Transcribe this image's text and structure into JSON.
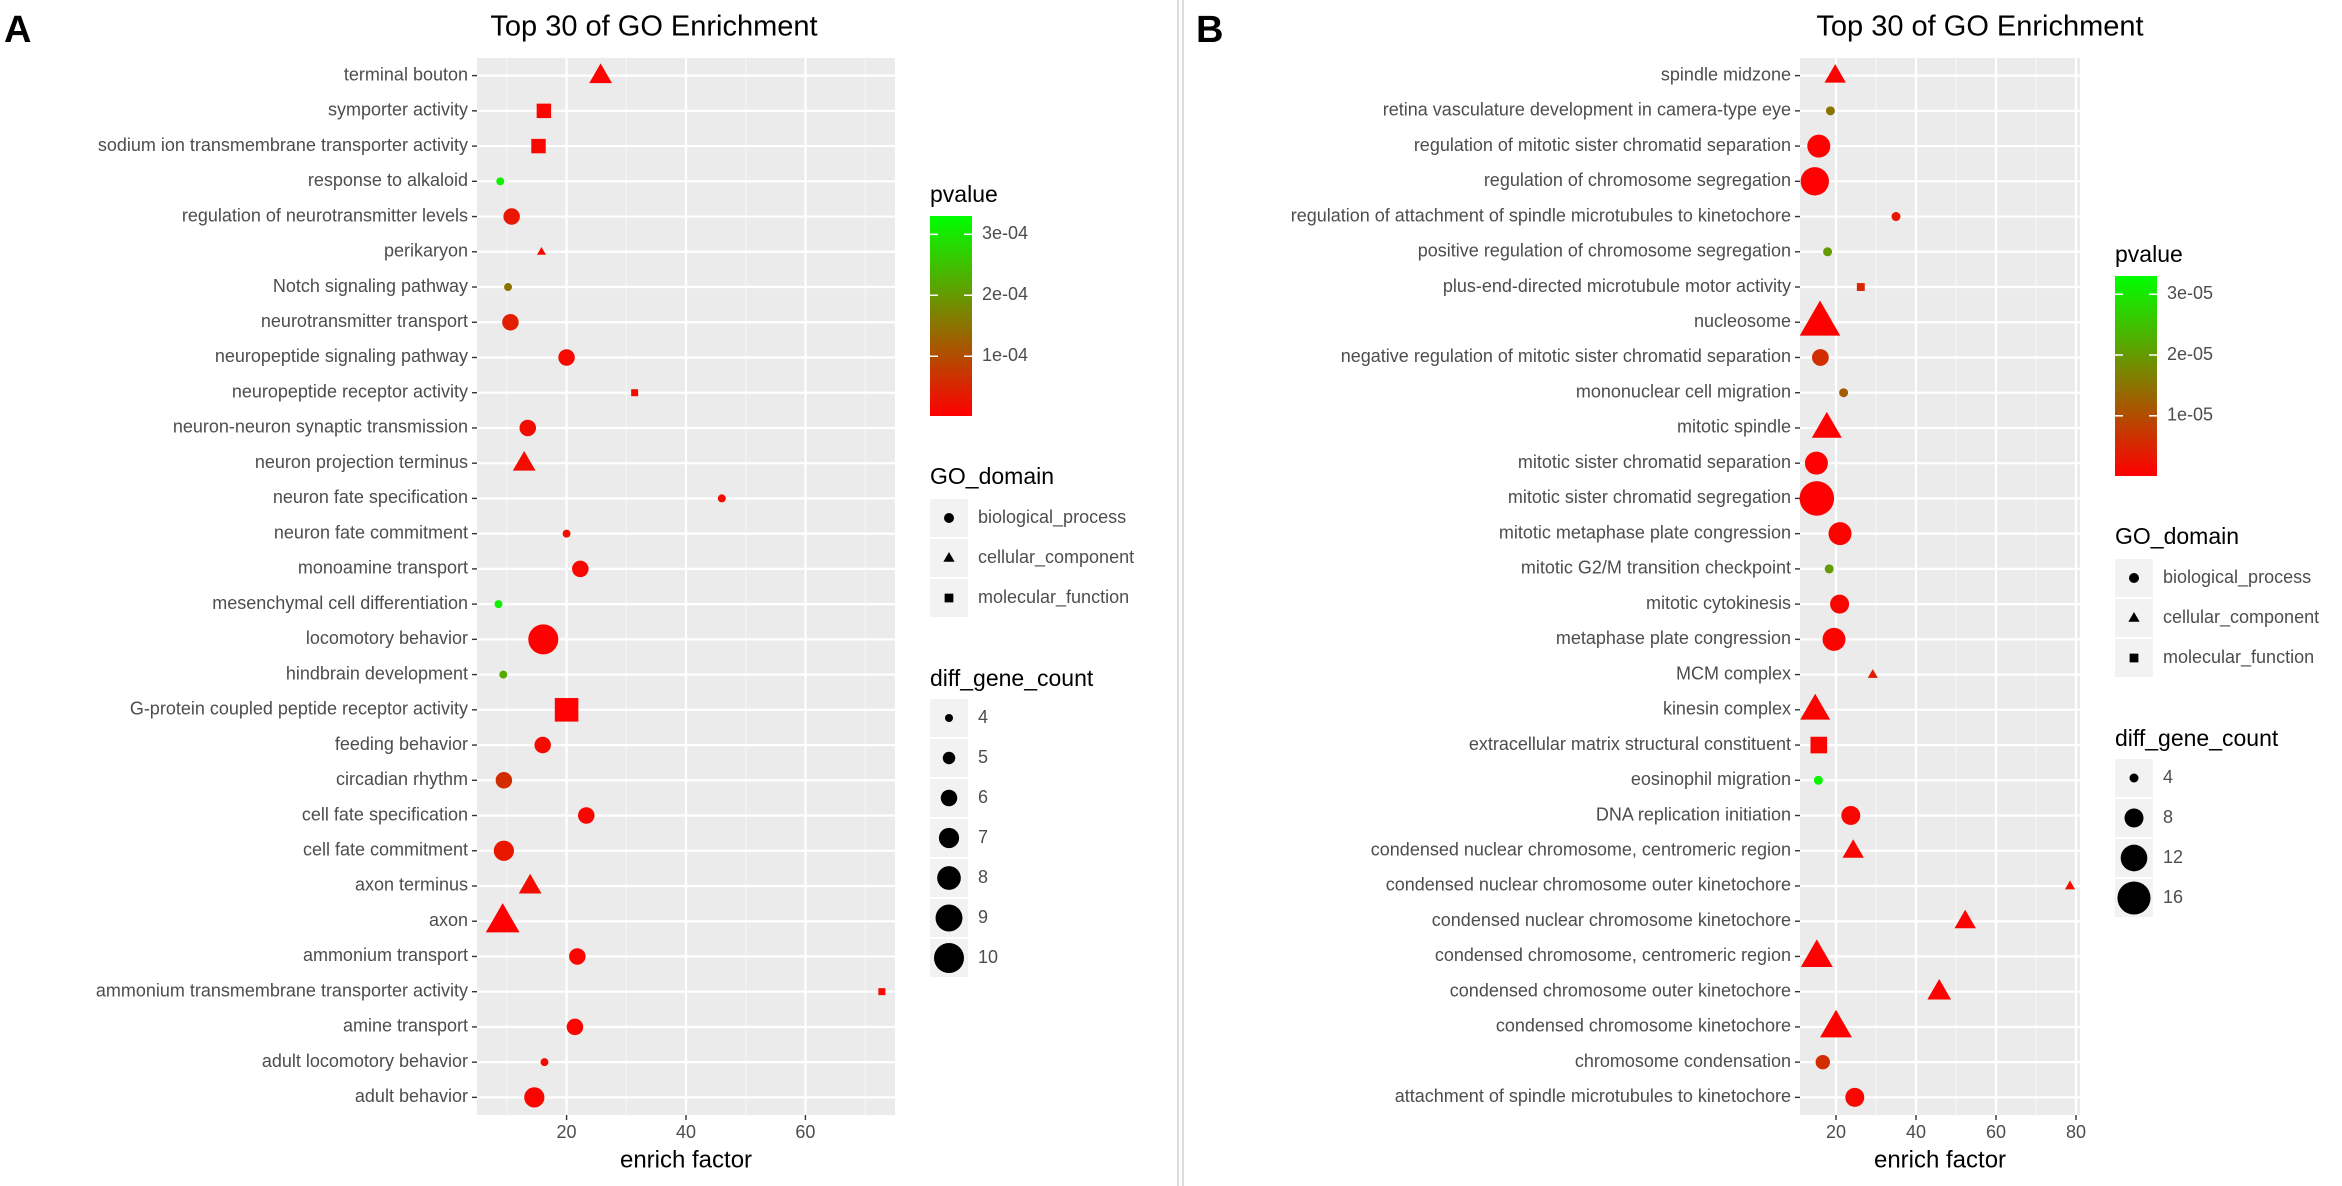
{
  "colors": {
    "panel_bg": "#EBEBEB",
    "grid_major": "#FFFFFF",
    "grid_minor": "#F5F5F5",
    "text": "#4D4D4D",
    "title": "#000000",
    "gradient_low": "#FF0000",
    "gradient_high": "#00FF00",
    "divider": "#CCCCCC"
  },
  "chart_data": [
    {
      "panel_label": "A",
      "type": "scatter",
      "title": "Top 30 of GO Enrichment",
      "xlabel": "enrich factor",
      "ylabel": "",
      "xlim": [
        5,
        75
      ],
      "xticks": [
        20,
        40,
        60
      ],
      "xtick_labels": [
        "20",
        "40",
        "60"
      ],
      "categories": [
        "terminal bouton",
        "symporter activity",
        "sodium ion transmembrane transporter activity",
        "response to alkaloid",
        "regulation of neurotransmitter levels",
        "perikaryon",
        "Notch signaling pathway",
        "neurotransmitter transport",
        "neuropeptide signaling pathway",
        "neuropeptide receptor activity",
        "neuron-neuron synaptic transmission",
        "neuron projection terminus",
        "neuron fate specification",
        "neuron fate commitment",
        "monoamine transport",
        "mesenchymal cell differentiation",
        "locomotory behavior",
        "hindbrain development",
        "G-protein coupled peptide receptor activity",
        "feeding behavior",
        "circadian rhythm",
        "cell fate specification",
        "cell fate commitment",
        "axon terminus",
        "axon",
        "ammonium transport",
        "ammonium transmembrane transporter activity",
        "amine transport",
        "adult locomotory behavior",
        "adult behavior"
      ],
      "points": [
        {
          "term": "terminal bouton",
          "x": 25.7,
          "pvalue": 5e-06,
          "domain": "cellular_component",
          "count": 7
        },
        {
          "term": "symporter activity",
          "x": 16.2,
          "pvalue": 1e-05,
          "domain": "molecular_function",
          "count": 6
        },
        {
          "term": "sodium ion transmembrane transporter activity",
          "x": 15.3,
          "pvalue": 1.2e-05,
          "domain": "molecular_function",
          "count": 6
        },
        {
          "term": "response to alkaloid",
          "x": 8.9,
          "pvalue": 0.00031,
          "domain": "biological_process",
          "count": 4
        },
        {
          "term": "regulation of neurotransmitter levels",
          "x": 10.8,
          "pvalue": 3e-05,
          "domain": "biological_process",
          "count": 6
        },
        {
          "term": "perikaryon",
          "x": 15.8,
          "pvalue": 1.5e-05,
          "domain": "cellular_component",
          "count": 4
        },
        {
          "term": "Notch signaling pathway",
          "x": 10.2,
          "pvalue": 0.00015,
          "domain": "biological_process",
          "count": 4
        },
        {
          "term": "neurotransmitter transport",
          "x": 10.6,
          "pvalue": 4e-05,
          "domain": "biological_process",
          "count": 6
        },
        {
          "term": "neuropeptide signaling pathway",
          "x": 20.0,
          "pvalue": 1.2e-05,
          "domain": "biological_process",
          "count": 6
        },
        {
          "term": "neuropeptide receptor activity",
          "x": 31.4,
          "pvalue": 1.5e-05,
          "domain": "molecular_function",
          "count": 4
        },
        {
          "term": "neuron-neuron synaptic transmission",
          "x": 13.5,
          "pvalue": 2e-05,
          "domain": "biological_process",
          "count": 6
        },
        {
          "term": "neuron projection terminus",
          "x": 12.9,
          "pvalue": 2e-05,
          "domain": "cellular_component",
          "count": 7
        },
        {
          "term": "neuron fate specification",
          "x": 46.0,
          "pvalue": 1.5e-05,
          "domain": "biological_process",
          "count": 4
        },
        {
          "term": "neuron fate commitment",
          "x": 20.0,
          "pvalue": 2e-05,
          "domain": "biological_process",
          "count": 4
        },
        {
          "term": "monoamine transport",
          "x": 22.3,
          "pvalue": 1e-05,
          "domain": "biological_process",
          "count": 6
        },
        {
          "term": "mesenchymal cell differentiation",
          "x": 8.6,
          "pvalue": 0.00031,
          "domain": "biological_process",
          "count": 4
        },
        {
          "term": "locomotory behavior",
          "x": 16.1,
          "pvalue": 2e-06,
          "domain": "biological_process",
          "count": 10
        },
        {
          "term": "hindbrain development",
          "x": 9.4,
          "pvalue": 0.00022,
          "domain": "biological_process",
          "count": 4
        },
        {
          "term": "G-protein coupled peptide receptor activity",
          "x": 20.0,
          "pvalue": 4e-06,
          "domain": "molecular_function",
          "count": 9
        },
        {
          "term": "feeding behavior",
          "x": 16.0,
          "pvalue": 1.5e-05,
          "domain": "biological_process",
          "count": 6
        },
        {
          "term": "circadian rhythm",
          "x": 9.5,
          "pvalue": 6e-05,
          "domain": "biological_process",
          "count": 6
        },
        {
          "term": "cell fate specification",
          "x": 23.3,
          "pvalue": 1e-05,
          "domain": "biological_process",
          "count": 6
        },
        {
          "term": "cell fate commitment",
          "x": 9.5,
          "pvalue": 3e-05,
          "domain": "biological_process",
          "count": 7
        },
        {
          "term": "axon terminus",
          "x": 13.9,
          "pvalue": 2e-05,
          "domain": "cellular_component",
          "count": 7
        },
        {
          "term": "axon",
          "x": 9.3,
          "pvalue": 2e-06,
          "domain": "cellular_component",
          "count": 10
        },
        {
          "term": "ammonium transport",
          "x": 21.8,
          "pvalue": 1e-05,
          "domain": "biological_process",
          "count": 6
        },
        {
          "term": "ammonium transmembrane transporter activity",
          "x": 72.8,
          "pvalue": 1.5e-05,
          "domain": "molecular_function",
          "count": 4
        },
        {
          "term": "amine transport",
          "x": 21.4,
          "pvalue": 1e-05,
          "domain": "biological_process",
          "count": 6
        },
        {
          "term": "adult locomotory behavior",
          "x": 16.3,
          "pvalue": 1.5e-05,
          "domain": "biological_process",
          "count": 4
        },
        {
          "term": "adult behavior",
          "x": 14.6,
          "pvalue": 1e-05,
          "domain": "biological_process",
          "count": 7
        }
      ],
      "legend": {
        "pvalue_title": "pvalue",
        "pvalue_range": [
          2e-06,
          0.00033
        ],
        "pvalue_ticks": [
          0.0001,
          0.0002,
          0.0003
        ],
        "pvalue_tick_labels": [
          "1e-04",
          "2e-04",
          "3e-04"
        ],
        "domain_title": "GO_domain",
        "domains": [
          "biological_process",
          "cellular_component",
          "molecular_function"
        ],
        "count_title": "diff_gene_count",
        "count_range": [
          4,
          10
        ],
        "count_values": [
          4,
          5,
          6,
          7,
          8,
          9,
          10
        ],
        "count_labels": [
          "4",
          "5",
          "6",
          "7",
          "8",
          "9",
          "10"
        ]
      }
    },
    {
      "panel_label": "B",
      "type": "scatter",
      "title": "Top 30 of GO Enrichment",
      "xlabel": "enrich factor",
      "ylabel": "",
      "xlim": [
        11,
        81
      ],
      "xticks": [
        20,
        40,
        60,
        80
      ],
      "xtick_labels": [
        "20",
        "40",
        "60",
        "80"
      ],
      "categories": [
        "spindle midzone",
        "retina vasculature development in camera-type eye",
        "regulation of mitotic sister chromatid separation",
        "regulation of chromosome segregation",
        "regulation of attachment of spindle microtubules to kinetochore",
        "positive regulation of chromosome segregation",
        "plus-end-directed microtubule motor activity",
        "nucleosome",
        "negative regulation of mitotic sister chromatid separation",
        "mononuclear cell migration",
        "mitotic spindle",
        "mitotic sister chromatid separation",
        "mitotic sister chromatid segregation",
        "mitotic metaphase plate congression",
        "mitotic G2/M transition checkpoint",
        "mitotic cytokinesis",
        "metaphase plate congression",
        "MCM complex",
        "kinesin complex",
        "extracellular matrix structural constituent",
        "eosinophil migration",
        "DNA replication initiation",
        "condensed nuclear chromosome, centromeric region",
        "condensed nuclear chromosome outer kinetochore",
        "condensed nuclear chromosome kinetochore",
        "condensed chromosome, centromeric region",
        "condensed chromosome outer kinetochore",
        "condensed chromosome kinetochore",
        "chromosome condensation",
        "attachment of spindle microtubules to kinetochore"
      ],
      "points": [
        {
          "term": "spindle midzone",
          "x": 19.8,
          "pvalue": 3e-07,
          "domain": "cellular_component",
          "count": 8
        },
        {
          "term": "retina vasculature development in camera-type eye",
          "x": 18.6,
          "pvalue": 1.5e-05,
          "domain": "biological_process",
          "count": 4
        },
        {
          "term": "regulation of mitotic sister chromatid separation",
          "x": 15.7,
          "pvalue": 3e-07,
          "domain": "biological_process",
          "count": 10
        },
        {
          "term": "regulation of chromosome segregation",
          "x": 14.7,
          "pvalue": 2e-07,
          "domain": "biological_process",
          "count": 13
        },
        {
          "term": "regulation of attachment of spindle microtubules to kinetochore",
          "x": 35.0,
          "pvalue": 3e-06,
          "domain": "biological_process",
          "count": 4
        },
        {
          "term": "positive regulation of chromosome segregation",
          "x": 17.9,
          "pvalue": 2e-05,
          "domain": "biological_process",
          "count": 4
        },
        {
          "term": "plus-end-directed microtubule motor activity",
          "x": 26.2,
          "pvalue": 5e-06,
          "domain": "molecular_function",
          "count": 4
        },
        {
          "term": "nucleosome",
          "x": 16.0,
          "pvalue": 1e-07,
          "domain": "cellular_component",
          "count": 18
        },
        {
          "term": "negative regulation of mitotic sister chromatid separation",
          "x": 16.1,
          "pvalue": 6e-06,
          "domain": "biological_process",
          "count": 7
        },
        {
          "term": "mononuclear cell migration",
          "x": 21.9,
          "pvalue": 1.2e-05,
          "domain": "biological_process",
          "count": 4
        },
        {
          "term": "mitotic spindle",
          "x": 17.7,
          "pvalue": 3e-07,
          "domain": "cellular_component",
          "count": 12
        },
        {
          "term": "mitotic sister chromatid separation",
          "x": 15.1,
          "pvalue": 3e-07,
          "domain": "biological_process",
          "count": 10
        },
        {
          "term": "mitotic sister chromatid segregation",
          "x": 15.2,
          "pvalue": 1e-07,
          "domain": "biological_process",
          "count": 17
        },
        {
          "term": "mitotic metaphase plate congression",
          "x": 21.0,
          "pvalue": 5e-07,
          "domain": "biological_process",
          "count": 10
        },
        {
          "term": "mitotic G2/M transition checkpoint",
          "x": 18.3,
          "pvalue": 2e-05,
          "domain": "biological_process",
          "count": 4
        },
        {
          "term": "mitotic cytokinesis",
          "x": 20.9,
          "pvalue": 1e-06,
          "domain": "biological_process",
          "count": 8
        },
        {
          "term": "metaphase plate congression",
          "x": 19.5,
          "pvalue": 6e-07,
          "domain": "biological_process",
          "count": 10
        },
        {
          "term": "MCM complex",
          "x": 29.2,
          "pvalue": 4e-06,
          "domain": "cellular_component",
          "count": 4
        },
        {
          "term": "kinesin complex",
          "x": 14.8,
          "pvalue": 5e-07,
          "domain": "cellular_component",
          "count": 12
        },
        {
          "term": "extracellular matrix structural constituent",
          "x": 15.7,
          "pvalue": 1e-06,
          "domain": "molecular_function",
          "count": 8
        },
        {
          "term": "eosinophil migration",
          "x": 15.6,
          "pvalue": 3.2e-05,
          "domain": "biological_process",
          "count": 4
        },
        {
          "term": "DNA replication initiation",
          "x": 23.7,
          "pvalue": 1e-06,
          "domain": "biological_process",
          "count": 8
        },
        {
          "term": "condensed nuclear chromosome, centromeric region",
          "x": 24.3,
          "pvalue": 1e-06,
          "domain": "cellular_component",
          "count": 8
        },
        {
          "term": "condensed nuclear chromosome outer kinetochore",
          "x": 78.5,
          "pvalue": 2e-06,
          "domain": "cellular_component",
          "count": 4
        },
        {
          "term": "condensed nuclear chromosome kinetochore",
          "x": 52.3,
          "pvalue": 2e-07,
          "domain": "cellular_component",
          "count": 8
        },
        {
          "term": "condensed chromosome, centromeric region",
          "x": 15.2,
          "pvalue": 3e-07,
          "domain": "cellular_component",
          "count": 13
        },
        {
          "term": "condensed chromosome outer kinetochore",
          "x": 45.8,
          "pvalue": 4e-07,
          "domain": "cellular_component",
          "count": 9
        },
        {
          "term": "condensed chromosome kinetochore",
          "x": 20.0,
          "pvalue": 2e-07,
          "domain": "cellular_component",
          "count": 13
        },
        {
          "term": "chromosome condensation",
          "x": 16.7,
          "pvalue": 6e-06,
          "domain": "biological_process",
          "count": 6
        },
        {
          "term": "attachment of spindle microtubules to kinetochore",
          "x": 24.7,
          "pvalue": 1e-06,
          "domain": "biological_process",
          "count": 8
        }
      ],
      "legend": {
        "pvalue_title": "pvalue",
        "pvalue_range": [
          1e-07,
          3.3e-05
        ],
        "pvalue_ticks": [
          1e-05,
          2e-05,
          3e-05
        ],
        "pvalue_tick_labels": [
          "1e-05",
          "2e-05",
          "3e-05"
        ],
        "domain_title": "GO_domain",
        "domains": [
          "biological_process",
          "cellular_component",
          "molecular_function"
        ],
        "count_title": "diff_gene_count",
        "count_range": [
          4,
          18
        ],
        "count_values": [
          4,
          8,
          12,
          16
        ],
        "count_labels": [
          "4",
          "8",
          "12",
          "16"
        ]
      }
    }
  ]
}
